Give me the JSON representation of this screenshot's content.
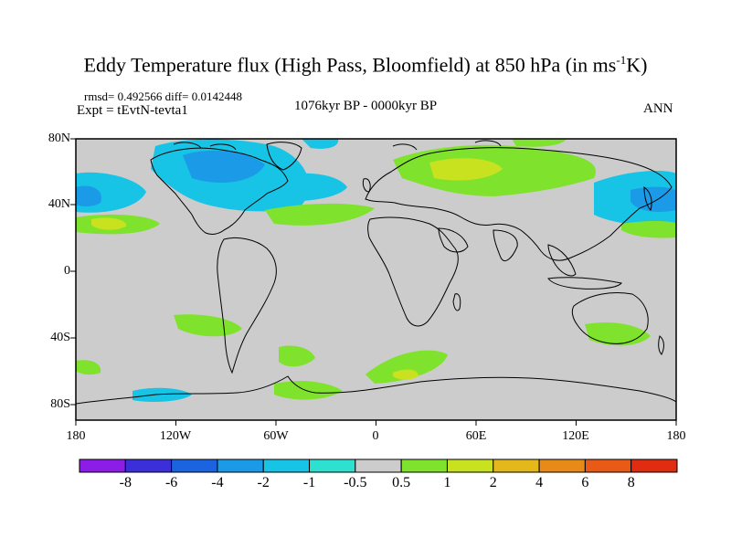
{
  "title": {
    "main": "Eddy Temperature flux (High Pass, Bloomfield) at 850 hPa (in ms",
    "sup": "-1",
    "tail": "K)"
  },
  "stats": "rmsd= 0.492566 diff= 0.0142448",
  "experiment": "Expt = tEvtN-tevta1",
  "period": "1076kyr BP - 0000kyr BP",
  "season": "ANN",
  "axes": {
    "lat_labels": [
      "80N",
      "40N",
      "0",
      "40S",
      "80S"
    ],
    "lon_labels": [
      "180",
      "120W",
      "60W",
      "0",
      "60E",
      "120E",
      "180"
    ]
  },
  "colorbar": {
    "labels": [
      "-8",
      "-6",
      "-4",
      "-2",
      "-1",
      "-0.5",
      "0.5",
      "1",
      "2",
      "4",
      "6",
      "8"
    ],
    "colors": [
      "#8b1de6",
      "#3a2fd9",
      "#1c63e0",
      "#1b9ae8",
      "#17c4e6",
      "#2de0d0",
      "#cccccc",
      "#7fe22d",
      "#c9e21f",
      "#e4b71a",
      "#e88a18",
      "#e85a16",
      "#e02c10"
    ]
  },
  "palette": {
    "land_mask": "#cccccc",
    "coast": "#000000"
  }
}
